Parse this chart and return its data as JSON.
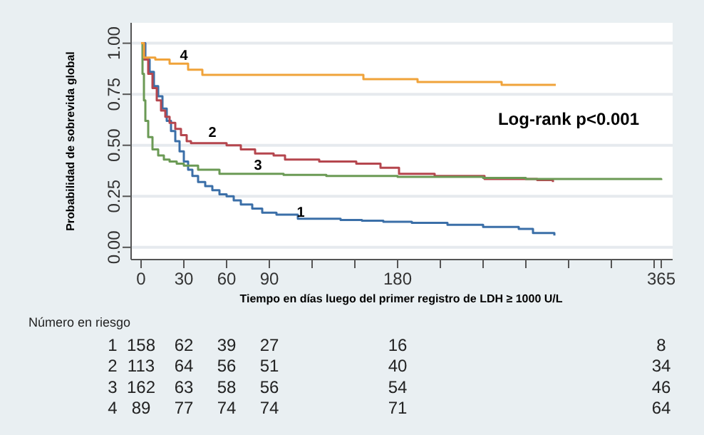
{
  "chart_data": {
    "type": "step",
    "xlabel": "Tiempo en días luego del primer registro de LDH ≥ 1000 U/L",
    "ylabel": "Probabilidad de sobrevida global",
    "xlim": [
      -7,
      373
    ],
    "ylim": [
      -0.06,
      1.1
    ],
    "xticks": [
      0,
      30,
      60,
      90,
      {
        "value": 120,
        "label": null
      },
      {
        "value": 150,
        "label": null
      },
      180,
      {
        "value": 210,
        "label": null
      },
      {
        "value": 240,
        "label": null
      },
      {
        "value": 270,
        "label": null
      },
      {
        "value": 300,
        "label": null
      },
      {
        "value": 330,
        "label": null
      },
      {
        "value": 360,
        "label": null
      },
      365
    ],
    "yticks": [
      {
        "value": 0,
        "label": "0.00"
      },
      {
        "value": 0.25,
        "label": "0.25"
      },
      {
        "value": 0.5,
        "label": "0.50"
      },
      {
        "value": 0.75,
        "label": "0.75"
      },
      {
        "value": 1,
        "label": "1.00"
      }
    ],
    "grid": "y",
    "line_style": "solid",
    "marker": "none",
    "series": [
      {
        "color": "#3b6fa8",
        "x": [
          0,
          3,
          6,
          9,
          12,
          15,
          18,
          21,
          24,
          27,
          30,
          33,
          36,
          40,
          45,
          50,
          55,
          60,
          65,
          70,
          78,
          85,
          95,
          110,
          125,
          140,
          155,
          170,
          190,
          215,
          240,
          265,
          275,
          290
        ],
        "values": [
          1,
          0.92,
          0.86,
          0.79,
          0.74,
          0.68,
          0.62,
          0.57,
          0.52,
          0.47,
          0.42,
          0.38,
          0.35,
          0.32,
          0.3,
          0.28,
          0.26,
          0.25,
          0.23,
          0.21,
          0.19,
          0.17,
          0.16,
          0.14,
          0.14,
          0.134,
          0.13,
          0.125,
          0.12,
          0.11,
          0.1,
          0.09,
          0.07,
          0.058
        ]
      },
      {
        "color": "#b5464e",
        "x": [
          0,
          2,
          5,
          8,
          11,
          14,
          17,
          20,
          24,
          28,
          32,
          35,
          45,
          60,
          70,
          80,
          93,
          101,
          125,
          151,
          168,
          181,
          206,
          241,
          278,
          289
        ],
        "values": [
          1,
          0.92,
          0.85,
          0.78,
          0.72,
          0.67,
          0.64,
          0.61,
          0.58,
          0.55,
          0.52,
          0.51,
          0.51,
          0.5,
          0.48,
          0.46,
          0.45,
          0.43,
          0.42,
          0.41,
          0.39,
          0.36,
          0.35,
          0.335,
          0.33,
          0.32
        ]
      },
      {
        "color": "#6b9a55",
        "x": [
          0,
          1,
          2,
          3,
          5,
          8,
          12,
          16,
          20,
          25,
          30,
          40,
          55,
          70,
          100,
          130,
          180,
          240,
          270,
          365
        ],
        "values": [
          1,
          0.85,
          0.72,
          0.62,
          0.54,
          0.48,
          0.45,
          0.43,
          0.42,
          0.41,
          0.4,
          0.38,
          0.36,
          0.36,
          0.355,
          0.35,
          0.345,
          0.34,
          0.335,
          0.33
        ]
      },
      {
        "color": "#f0a33a",
        "x": [
          0,
          2,
          10,
          20,
          33,
          43,
          156,
          194,
          253,
          291
        ],
        "values": [
          1,
          0.93,
          0.92,
          0.9,
          0.87,
          0.845,
          0.824,
          0.81,
          0.796,
          0.796
        ]
      }
    ],
    "annotations": [
      {
        "text": "1",
        "x": 112,
        "y": 0.15
      },
      {
        "text": "2",
        "x": 50,
        "y": 0.54
      },
      {
        "text": "3",
        "x": 82,
        "y": 0.38
      },
      {
        "text": "4",
        "x": 30,
        "y": 0.92
      },
      "Log-rank p<0.001",
      "Número en riesgo",
      "1 158 62 39 27 16 8",
      "2 113 64 56 51 40 34",
      "3 162 63 58 56 54 46",
      "4 89 77 74 74 71 64"
    ]
  }
}
